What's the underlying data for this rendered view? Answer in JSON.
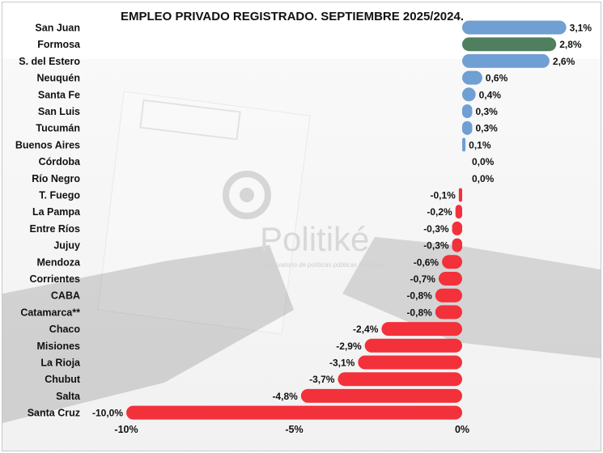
{
  "chart_data": {
    "type": "bar",
    "orientation": "horizontal",
    "title": "EMPLEO PRIVADO REGISTRADO. SEPTIEMBRE 2025/2024.",
    "categories": [
      "San Juan",
      "Formosa",
      "S. del Estero",
      "Neuquén",
      "Santa Fe",
      "San Luis",
      "Tucumán",
      "Buenos Aires",
      "Córdoba",
      "Río Negro",
      "T. Fuego",
      "La Pampa",
      "Entre Ríos",
      "Jujuy",
      "Mendoza",
      "Corrientes",
      "CABA",
      "Catamarca**",
      "Chaco",
      "Misiones",
      "La Rioja",
      "Chubut",
      "Salta",
      "Santa Cruz"
    ],
    "values": [
      3.1,
      2.8,
      2.6,
      0.6,
      0.4,
      0.3,
      0.3,
      0.1,
      0.0,
      0.0,
      -0.1,
      -0.2,
      -0.3,
      -0.3,
      -0.6,
      -0.7,
      -0.8,
      -0.8,
      -2.4,
      -2.9,
      -3.1,
      -3.7,
      -4.8,
      -10.0
    ],
    "data_labels": [
      "3,1%",
      "2,8%",
      "2,6%",
      "0,6%",
      "0,4%",
      "0,3%",
      "0,3%",
      "0,1%",
      "0,0%",
      "0,0%",
      "-0,1%",
      "-0,2%",
      "-0,3%",
      "-0,3%",
      "-0,6%",
      "-0,7%",
      "-0,8%",
      "-0,8%",
      "-2,4%",
      "-2,9%",
      "-3,1%",
      "-3,7%",
      "-4,8%",
      "-10,0%"
    ],
    "colors": {
      "positive": "#6f9fd3",
      "highlight": "#4f7f5e",
      "negative": "#f2313a"
    },
    "highlight_category": "Formosa",
    "xlim": [
      -10,
      3.1
    ],
    "xticks": [
      -10,
      -5,
      0
    ],
    "xtick_labels": [
      "-10%",
      "-5%",
      "0%"
    ],
    "grid": false,
    "legend": "none"
  },
  "watermark": {
    "brand": "Politiké",
    "tagline": "Observatorio de políticas públicas Formosa"
  }
}
